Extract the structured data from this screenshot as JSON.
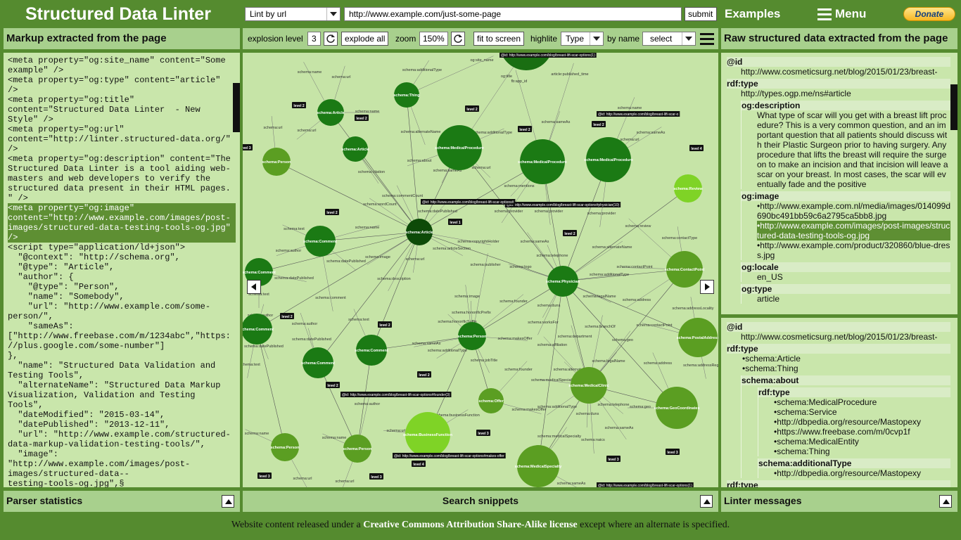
{
  "header": {
    "title": "Structured Data Linter",
    "mode": "Lint by url",
    "url": "http://www.example.com/just-some-page",
    "submit": "submit",
    "examples": "Examples",
    "menu": "Menu",
    "donate": "Donate"
  },
  "left_panel": {
    "title": "Markup extracted from the page",
    "lines": [
      "<meta property=\"og:site_name\" content=\"Some",
      "example\" />",
      "<meta property=\"og:type\" content=\"article\"",
      "/>",
      "<meta property=\"og:title\"",
      "content=\"Structured Data Linter  - New",
      "Style\" />",
      "<meta property=\"og:url\"",
      "content=\"http://linter.structured-data.org/\"",
      "/>",
      "<meta property=\"og:description\" content=\"The",
      "Structured Data Linter is a tool aiding web-",
      "masters and web developers to verify the",
      "structured data present in their HTML pages.",
      "\" />",
      "<meta property=\"og:image\"",
      "content=\"http://www.example.com/images/post-",
      "images/structured-data-testing-tools-og.jpg\"",
      "/>",
      "<script type=\"application/ld+json\">",
      "  \"@context\": \"http://schema.org\",",
      "  \"@type\": \"Article\",",
      "  \"author\": {",
      "    \"@type\": \"Person\",",
      "    \"name\": \"Somebody\",",
      "    \"url\": \"http://www.example.com/some-",
      "person/\",",
      "    \"sameAs\":",
      "[\"http://www.freebase.com/m/1234abc\",\"https:",
      "//plus.google.com/some-number\"]",
      "},",
      "  \"name\": \"Structured Data Validation and",
      "Testing Tools\",",
      "  \"alternateName\": \"Structured Data Markup",
      "Visualization, Validation and Testing",
      "Tools\",",
      "  \"dateModified\": \"2015-03-14\",",
      "  \"datePublished\": \"2013-12-11\",",
      "  \"url\": \"http://www.example.com/structured-",
      "data-markup-validation-testing-tools/\",",
      "  \"image\":",
      "\"http://www.example.com/images/post-",
      "images/structured-data--",
      "testing-tools-og.jpg\",§"
    ]
  },
  "toolbar": {
    "explosion_label": "explosion level",
    "explosion_value": 3,
    "explode_button": "explode all",
    "zoom_label": "zoom",
    "zoom_value": "150%",
    "fit_button": "fit to screen",
    "highlite_label": "highlite",
    "highlite_value": "Type",
    "byname_label": "by name",
    "byname_value": "select"
  },
  "graph": {
    "nodes": [
      "schema:Thing",
      "schema:Article",
      "schema:Article",
      "schema:MedicalProcedure",
      "schema:MedicalProcedure",
      "schema:MedicalProcedure",
      "schema:Person",
      "schema:Review",
      "schema:Article",
      "schema:Comment",
      "schema:Comment",
      "schema:Physician",
      "schema:ContactPoint",
      "schema:Comment",
      "schema:Person",
      "schema:PostalAddress",
      "schema:Comment",
      "schema:Comment",
      "schema:MedicalClinic",
      "schema:GeoCoordinates",
      "schema:Offer",
      "schema:BusinessFunction",
      "schema:Person",
      "schema:Person",
      "schema:MedicalSpecialty"
    ],
    "edge_labels": [
      "schema:name",
      "schema:url",
      "schema:additionalType",
      "og:site_name",
      "og:title",
      "fb:app_id",
      "article:published_time",
      "schema:url",
      "schema:name",
      "schema:alternateName",
      "schema:additionalType",
      "schema:sameAs",
      "schema:name",
      "schema:sameAs",
      "schema:url",
      "schema:url",
      "schema:about",
      "schema:sameAs",
      "schema:url",
      "schema:citation",
      "schema:mentions",
      "schema:commentCount",
      "schema:wordCount",
      "schema:name",
      "schema:datePublished",
      "schema:text",
      "schema:provider",
      "schema:provider",
      "schema:provider",
      "schema:review",
      "schema:contactType",
      "schema:author",
      "schema:image",
      "schema:copyrightHolder",
      "schema:sameAs",
      "schema:alternateName",
      "schema:datePublished",
      "schema:url",
      "schema:articleSection",
      "schema:telephone",
      "schema:publisher",
      "schema:logo",
      "schema:contactPoint",
      "schema:additionalType",
      "schema:datePublished",
      "schema:description",
      "schema:legalName",
      "schema:image",
      "schema:founder",
      "schema:address",
      "schema:comment",
      "schema:honorificPrefix",
      "schema:duns",
      "schema:addressLocality",
      "schema:text",
      "schema:author",
      "schema:text",
      "schema:author",
      "schema:worksFor",
      "schema:branchOf",
      "schema:contactPoint",
      "schema:honorificSuffix",
      "schema:datePublished",
      "schema:department",
      "schema:geo",
      "schema:sameAs",
      "schema:makesOffer",
      "schema:additionalType",
      "schema:affiliation",
      "schema:legalName",
      "schema:address",
      "schema:addressRegion",
      "schema:datePublished",
      "schema:text",
      "schema:jobTitle",
      "schema:founder",
      "schema:alternateName",
      "schema:medicalSpecialty",
      "schema:author",
      "schema:telephone",
      "schema:geo",
      "schema:additionalType",
      "schema:businessFunction",
      "schema:makesOffer",
      "schema:duns",
      "schema:sameAs",
      "schema:name",
      "schema:name",
      "schema:url",
      "schema:medicalSpecialty",
      "schema:naics",
      "schema:url",
      "schema:url",
      "schema:sameAs"
    ],
    "badges": [
      "level 2",
      "level 2",
      "level 2",
      "level 2",
      "level 2",
      "level 4",
      "level 2",
      "level 2",
      "level 2",
      "level 2",
      "level 2",
      "level 2",
      "level 1",
      "level 3",
      "level 3",
      "level 3",
      "level 3",
      "level 3",
      "level 4",
      "level 3"
    ],
    "ids": [
      "@id: http://www.example.com/blog/breast-lift-scar-options(1)",
      "@id: http://www.example.com/blog/breast-lift-scar-options#physician(10)",
      "@id: http://www.example.com/blog/breast-lift-scar-options#",
      "@id: http://www.example.com/blog/breast-lift-scar-options#founder(3)",
      "@id: http://www.example.com/blog/breast-lift-scar-options#makes-offer",
      "@id: http://www.example.com/blog/breast-lift-scar-options(1)",
      "@id: http://www.example.com/blog/breast-lift-scar-o"
    ]
  },
  "right_panel": {
    "title": "Raw structured data extracted from the page",
    "boxes": [
      [
        {
          "key": "@id",
          "values": [
            "http://www.cosmeticsurg.net/blog/2015/01/23/breast-"
          ]
        },
        {
          "key": "rdf:type",
          "values": [
            "http://types.ogp.me/ns#article"
          ],
          "children": [
            {
              "key": "og:description",
              "values": [
                "What type of scar will you get with a breast lift procedure? This is a very common question, and an important question that all patients should discuss with their Plastic Surgeon prior to having surgery. Any procedure that lifts the breast will require the surgeon to make an incision and that incision will leave a scar on your breast. In most cases, the scar will eventually fade and the positive"
              ]
            },
            {
              "key": "og:image",
              "values": [
                "•http://www.example.com.nl/media/images/014099d690bc491bb59c6a2795ca5bb8.jpg",
                "•http://www.example.com/images/post-images/structured-data-testing-tools-og.jpg",
                "•http://www.example.com/product/320860/blue-dress.jpg"
              ]
            },
            {
              "key": "og:locale",
              "values": [
                "en_US"
              ]
            },
            {
              "key": "og:type",
              "values": [
                "article"
              ]
            }
          ]
        }
      ],
      [
        {
          "key": "@id",
          "values": [
            "http://www.cosmeticsurg.net/blog/2015/01/23/breast-"
          ]
        },
        {
          "key": "rdf:type",
          "values": [
            "•schema:Article",
            "•schema:Thing"
          ],
          "children": [
            {
              "key": "schema:about",
              "values": [],
              "children": [
                {
                  "key": "rdf:type",
                  "values": [
                    "•schema:MedicalProcedure",
                    "•schema:Service",
                    "•http://dbpedia.org/resource/Mastopexy",
                    "•https://www.freebase.com/m/0cvp1f",
                    "•schema:MedicalEntity",
                    "•schema:Thing"
                  ]
                },
                {
                  "key": "schema:additionalType",
                  "values": [
                    "•http://dbpedia.org/resource/Mastopexy"
                  ]
                }
              ]
            }
          ]
        },
        {
          "key": "rdf:type",
          "values": []
        }
      ]
    ]
  },
  "bottom": {
    "parser": "Parser statistics",
    "snippets": "Search snippets",
    "linter": "Linter messages"
  },
  "footer": {
    "before": "Website content released under a ",
    "link": "Creative Commons Attribution Share-Alike license",
    "after": " except where an alternate is specified."
  }
}
